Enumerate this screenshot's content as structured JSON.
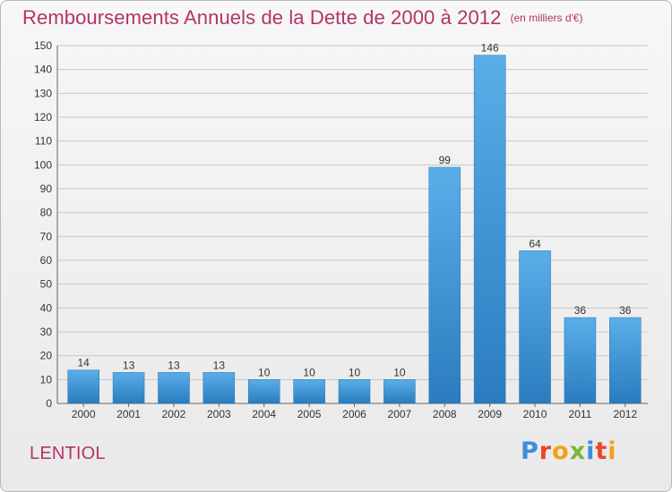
{
  "header": {
    "title": "Remboursements Annuels de la Dette de 2000 à 2012",
    "subtitle": "(en milliers d'€)"
  },
  "footer": {
    "commune": "LENTIOL",
    "logo_text": "Proxiti"
  },
  "colors": {
    "title": "#b3336a",
    "bar_light": "#5aaee8",
    "bar_dark": "#2a7cbf",
    "grid": "#c8c8c8"
  },
  "chart_data": {
    "type": "bar",
    "title": "Remboursements Annuels de la Dette de 2000 à 2012",
    "subtitle": "(en milliers d'€)",
    "categories": [
      "2000",
      "2001",
      "2002",
      "2003",
      "2004",
      "2005",
      "2006",
      "2007",
      "2008",
      "2009",
      "2010",
      "2011",
      "2012"
    ],
    "values": [
      14,
      13,
      13,
      13,
      10,
      10,
      10,
      10,
      99,
      146,
      64,
      36,
      36
    ],
    "ylim": [
      0,
      150
    ],
    "yticks": [
      0,
      10,
      20,
      30,
      40,
      50,
      60,
      70,
      80,
      90,
      100,
      110,
      120,
      130,
      140,
      150
    ],
    "grid": true,
    "data_labels": true
  }
}
